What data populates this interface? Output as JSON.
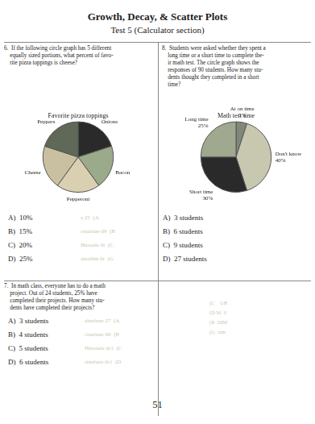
{
  "title": "Growth, Decay, & Scatter Plots",
  "subtitle": "Test 5 (Calculator section)",
  "annotations": {
    "question": [
      "7.  In math class, everyone has to do a math",
      "    project. Out of 24 students, 25% have",
      "    completed their projects. How many stu-",
      "    dents have completed their projects?"
    ],
    "answers": [
      "A)  3 students",
      "B)  4 students",
      "C)  5 students",
      "D)  6 students"
    ],
    "faint": [
      "elnebute 27  (A",
      "ctnebute 09  (B",
      "Hinsaule 0r1  (C",
      "sinebute 0r1  (D"
    ],
    "faint_table": [
      "(C    GB",
      "(D M  S",
      "(R  DIM",
      "(G  aim"
    ],
    "page_number": "51"
  },
  "chart_data": [
    {
      "type": "pie",
      "title": "Favorite pizza toppings",
      "categories": [
        "Onions",
        "Bacon",
        "Pepperoni",
        "Cheese",
        "Peppers"
      ],
      "values": [
        20,
        20,
        20,
        20,
        20
      ],
      "colors": [
        "#2a2a2a",
        "#9aaa8a",
        "#d8d0b0",
        "#c8c0a0",
        "#606858"
      ],
      "annotations": {
        "question": [
          "6.  If the following circle graph has 5 different",
          "    equally sized portions, what percent of favo-",
          "    rite pizza toppings is cheese?"
        ],
        "answers": [
          "A)  10%",
          "B)  15%",
          "C)  20%",
          "D)  25%"
        ],
        "faint": [
          "a 25  (A",
          "ctnabute 09  (B",
          "Hnsaule 0r  (C",
          "aina0im 0r  (G"
        ]
      }
    },
    {
      "type": "pie",
      "title": "Math test time",
      "categories": [
        "At on time",
        "Don't know",
        "Short time",
        "Long time"
      ],
      "values": [
        5,
        40,
        30,
        25
      ],
      "value_labels": [
        "5%",
        "40%",
        "30%",
        "25%"
      ],
      "data_labels": true,
      "colors": [
        "#808878",
        "#c8c8b0",
        "#2a2a2a",
        "#a0a890"
      ],
      "annotations": {
        "question": [
          "8.  Students were asked whether they spent a",
          "    long time or a short time to complete the-",
          "    ir math test. The circle graph shows the",
          "    responses of 90 students. How many stu-",
          "    dents thought they completed in a short",
          "    time?"
        ],
        "answers": [
          "A)  3 students",
          "B)  6 students",
          "C)  9 students",
          "D)  27 students"
        ]
      }
    }
  ]
}
